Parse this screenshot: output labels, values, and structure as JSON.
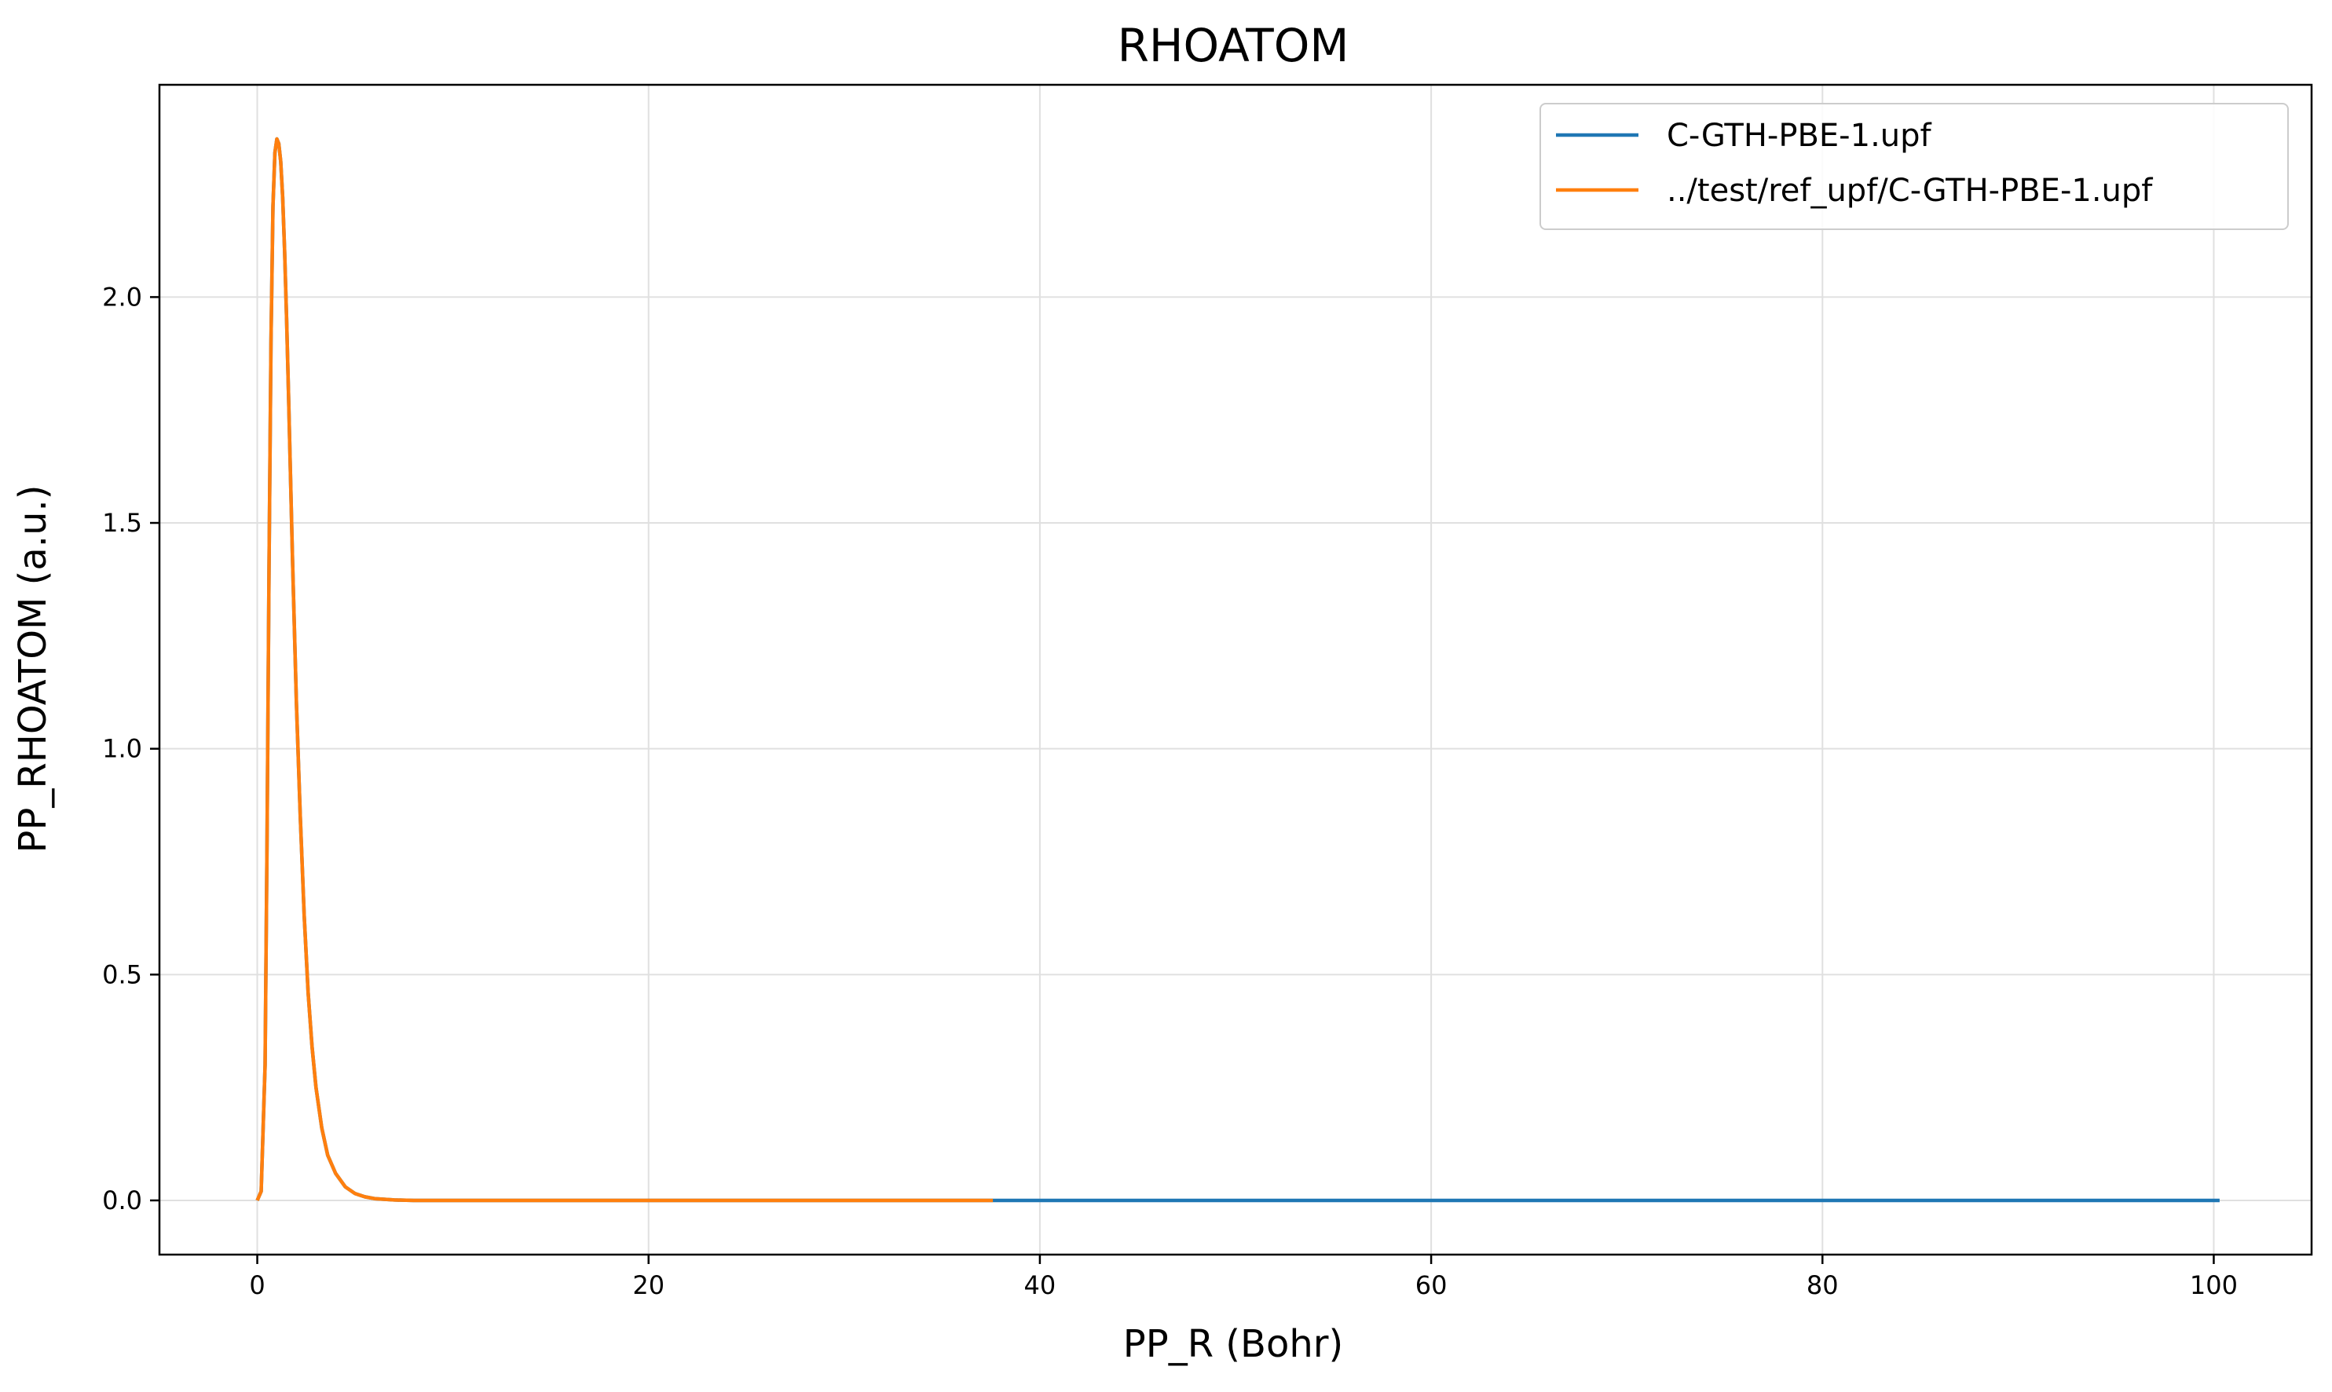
{
  "chart_data": {
    "type": "line",
    "title": "RHOATOM",
    "xlabel": "PP_R (Bohr)",
    "ylabel": "PP_RHOATOM (a.u.)",
    "xlim": [
      -5,
      105
    ],
    "ylim": [
      -0.12,
      2.47
    ],
    "xticks": [
      0,
      20,
      40,
      60,
      80,
      100
    ],
    "xtick_labels": [
      "0",
      "20",
      "40",
      "60",
      "80",
      "100"
    ],
    "yticks": [
      0.0,
      0.5,
      1.0,
      1.5,
      2.0
    ],
    "ytick_labels": [
      "0.0",
      "0.5",
      "1.0",
      "1.5",
      "2.0"
    ],
    "grid": true,
    "legend_position": "top-right",
    "colors": {
      "series1": "#1f77b4",
      "series2": "#ff7f0e",
      "grid": "#e0e0e0",
      "axes": "#000000"
    },
    "series": [
      {
        "name": "C-GTH-PBE-1.upf",
        "x": [
          0,
          0.2,
          0.4,
          0.5,
          0.6,
          0.7,
          0.8,
          0.9,
          1.0,
          1.1,
          1.2,
          1.3,
          1.4,
          1.5,
          1.6,
          1.8,
          2.0,
          2.2,
          2.4,
          2.6,
          2.8,
          3.0,
          3.3,
          3.6,
          4.0,
          4.5,
          5.0,
          5.5,
          6.0,
          7.0,
          8.0,
          9.0,
          10.0,
          20.0,
          40.0,
          60.0,
          80.0,
          100.3
        ],
        "y": [
          0.0,
          0.02,
          0.3,
          0.8,
          1.4,
          1.9,
          2.2,
          2.32,
          2.35,
          2.34,
          2.3,
          2.22,
          2.1,
          1.95,
          1.78,
          1.42,
          1.1,
          0.85,
          0.63,
          0.46,
          0.34,
          0.25,
          0.16,
          0.1,
          0.06,
          0.03,
          0.015,
          0.008,
          0.004,
          0.001,
          0.0,
          0.0,
          0.0,
          0.0,
          0.0,
          0.0,
          0.0,
          0.0
        ]
      },
      {
        "name": "../test/ref_upf/C-GTH-PBE-1.upf",
        "x": [
          0,
          0.2,
          0.4,
          0.5,
          0.6,
          0.7,
          0.8,
          0.9,
          1.0,
          1.1,
          1.2,
          1.3,
          1.4,
          1.5,
          1.6,
          1.8,
          2.0,
          2.2,
          2.4,
          2.6,
          2.8,
          3.0,
          3.3,
          3.6,
          4.0,
          4.5,
          5.0,
          5.5,
          6.0,
          7.0,
          8.0,
          9.0,
          10.0,
          20.0,
          30.0,
          37.6
        ],
        "y": [
          0.0,
          0.02,
          0.3,
          0.8,
          1.4,
          1.9,
          2.2,
          2.32,
          2.35,
          2.34,
          2.3,
          2.22,
          2.1,
          1.95,
          1.78,
          1.42,
          1.1,
          0.85,
          0.63,
          0.46,
          0.34,
          0.25,
          0.16,
          0.1,
          0.06,
          0.03,
          0.015,
          0.008,
          0.004,
          0.001,
          0.0,
          0.0,
          0.0,
          0.0,
          0.0,
          0.0
        ]
      }
    ]
  }
}
